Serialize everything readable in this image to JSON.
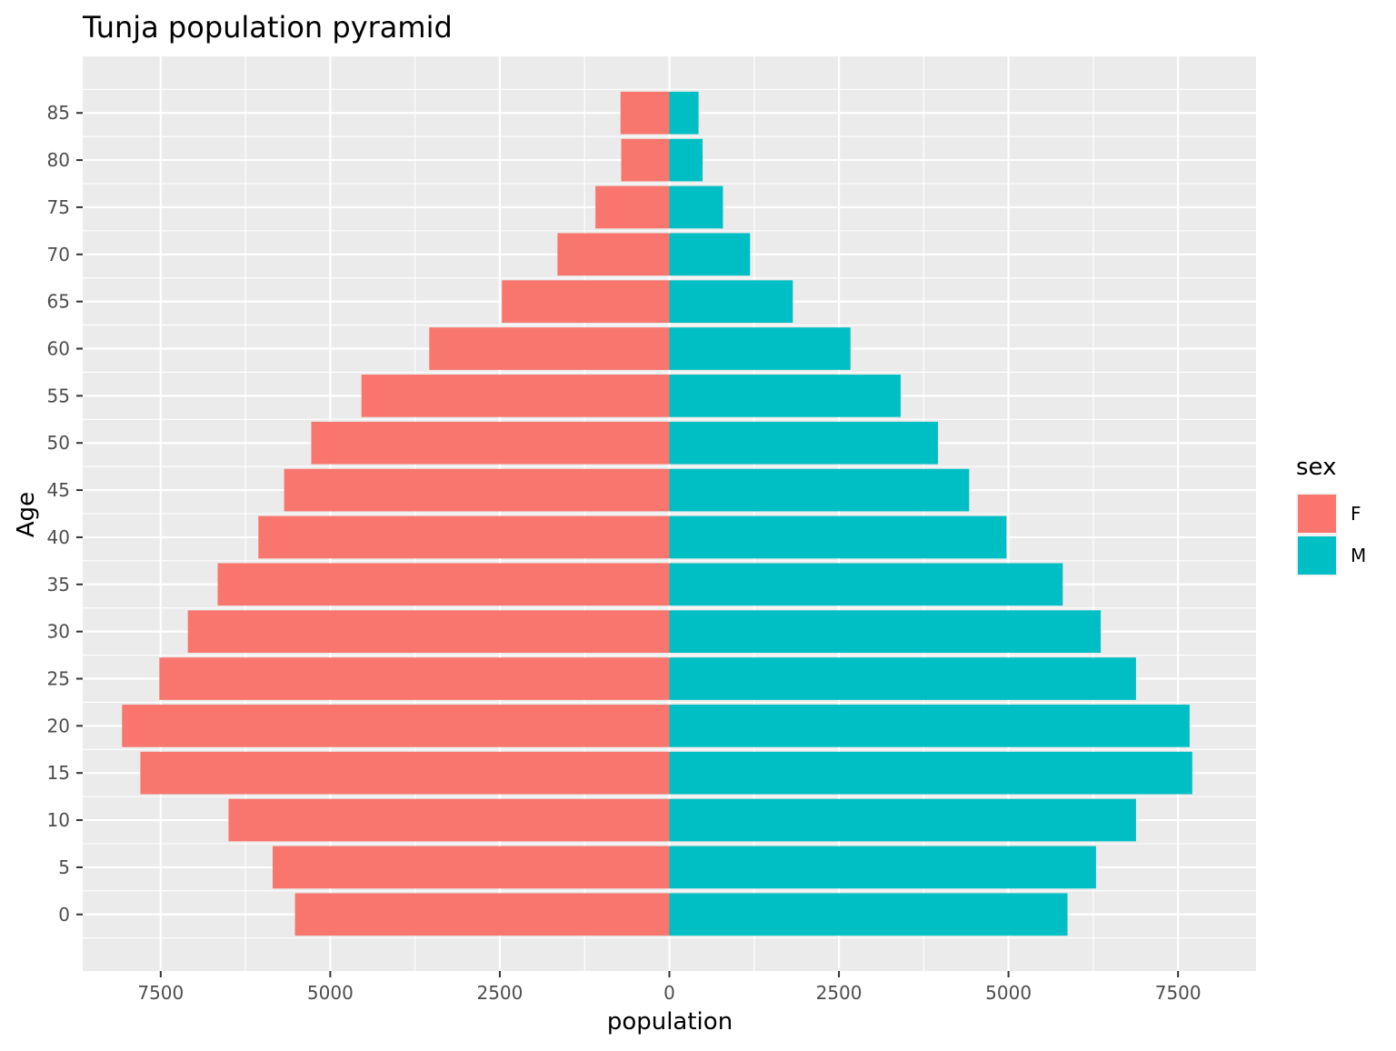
{
  "chart_data": {
    "type": "bar",
    "orientation": "horizontal",
    "title": "Tunja population pyramid",
    "xlabel": "population",
    "ylabel": "Age",
    "xlim": [
      -8650,
      8650
    ],
    "ylim": [
      -6,
      91
    ],
    "x_ticks": [
      -7500,
      -5000,
      -2500,
      0,
      2500,
      5000,
      7500
    ],
    "x_tick_labels": [
      "7500",
      "5000",
      "2500",
      "0",
      "2500",
      "5000",
      "7500"
    ],
    "y_ticks": [
      0,
      5,
      10,
      15,
      20,
      25,
      30,
      35,
      40,
      45,
      50,
      55,
      60,
      65,
      70,
      75,
      80,
      85
    ],
    "y_tick_labels": [
      "0",
      "5",
      "10",
      "15",
      "20",
      "25",
      "30",
      "35",
      "40",
      "45",
      "50",
      "55",
      "60",
      "65",
      "70",
      "75",
      "80",
      "85"
    ],
    "grid": true,
    "legend_title": "sex",
    "legend_position": "right",
    "categories": [
      0,
      5,
      10,
      15,
      20,
      25,
      30,
      35,
      40,
      45,
      50,
      55,
      60,
      65,
      70,
      75,
      80,
      85
    ],
    "series": [
      {
        "name": "F",
        "color": "#F8766D",
        "values": [
          5520,
          5850,
          6500,
          7800,
          8070,
          7520,
          7100,
          6660,
          6060,
          5680,
          5280,
          4540,
          3540,
          2470,
          1650,
          1090,
          710,
          720
        ]
      },
      {
        "name": "M",
        "color": "#00BFC4",
        "values": [
          5870,
          6290,
          6880,
          7710,
          7670,
          6880,
          6360,
          5800,
          4970,
          4420,
          3960,
          3410,
          2670,
          1820,
          1190,
          790,
          490,
          430
        ]
      }
    ],
    "colors": {
      "panel_bg": "#EBEBEB",
      "grid_major": "#FFFFFF",
      "tick_text": "#4D4D4D",
      "tick_mark": "#333333"
    }
  }
}
